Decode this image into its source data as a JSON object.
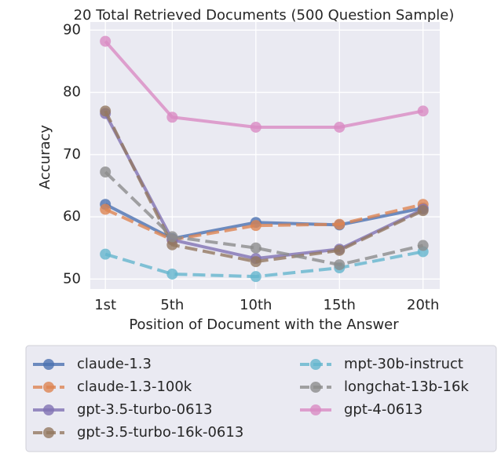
{
  "chart_data": {
    "type": "line",
    "title": "20 Total Retrieved Documents (500 Question Sample)",
    "x_label": "Position of Document with the Answer",
    "y_label": "Accuracy",
    "x": [
      1,
      5,
      10,
      15,
      20
    ],
    "xlim": [
      0.1,
      21.0
    ],
    "xticks": [
      {
        "value": 1,
        "label": "1st"
      },
      {
        "value": 5,
        "label": "5th"
      },
      {
        "value": 10,
        "label": "10th"
      },
      {
        "value": 15,
        "label": "15th"
      },
      {
        "value": 20,
        "label": "20th"
      }
    ],
    "ylim": [
      48.4,
      91.3
    ],
    "yticks": [
      50,
      60,
      70,
      80,
      90
    ],
    "grid": true,
    "legend": "below",
    "series": [
      {
        "name": "claude-1.3",
        "color": "#4c72b0",
        "dashed": false,
        "values": [
          62.0,
          56.5,
          59.1,
          58.7,
          61.4
        ]
      },
      {
        "name": "claude-1.3-100k",
        "color": "#dd8452",
        "dashed": true,
        "values": [
          61.2,
          56.3,
          58.6,
          58.8,
          62.0
        ]
      },
      {
        "name": "gpt-3.5-turbo-0613",
        "color": "#8172b3",
        "dashed": false,
        "values": [
          76.6,
          56.3,
          53.3,
          54.8,
          61.2
        ]
      },
      {
        "name": "gpt-3.5-turbo-16k-0613",
        "color": "#937860",
        "dashed": true,
        "values": [
          77.0,
          55.5,
          52.8,
          54.6,
          61.0
        ]
      },
      {
        "name": "mpt-30b-instruct",
        "color": "#64b5cd",
        "dashed": true,
        "values": [
          54.0,
          50.8,
          50.4,
          51.8,
          54.4
        ]
      },
      {
        "name": "longchat-13b-16k",
        "color": "#8c8c8c",
        "dashed": true,
        "values": [
          67.2,
          56.8,
          55.0,
          52.3,
          55.4
        ]
      },
      {
        "name": "gpt-4-0613",
        "color": "#da8bc3",
        "dashed": false,
        "values": [
          88.2,
          76.0,
          74.4,
          74.4,
          77.0
        ]
      }
    ]
  }
}
